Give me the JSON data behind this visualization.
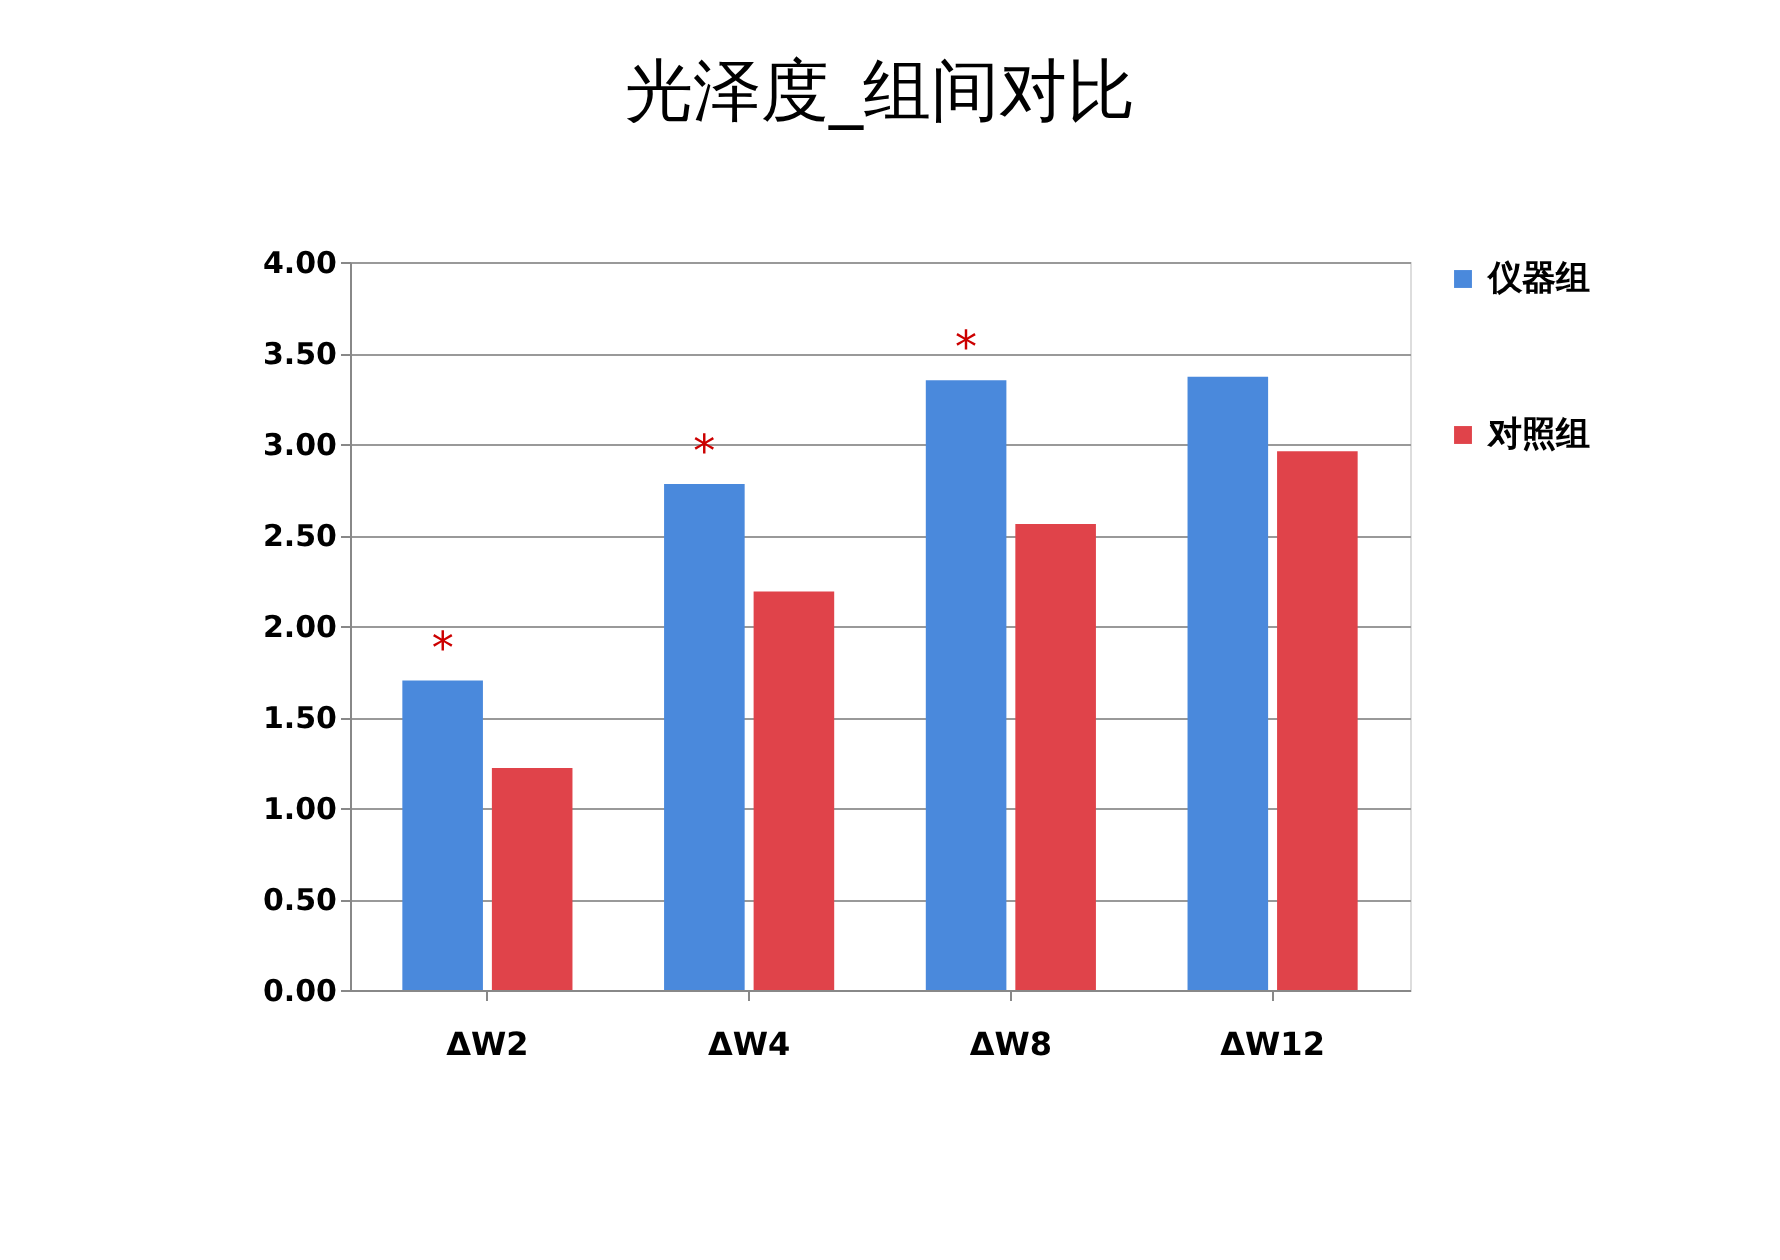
{
  "chart_data": {
    "type": "bar",
    "title": "光泽度_组间对比",
    "categories": [
      "ΔW2",
      "ΔW4",
      "ΔW8",
      "ΔW12"
    ],
    "series": [
      {
        "name": "仪器组",
        "color": "#4a89dc",
        "values": [
          1.7,
          2.78,
          3.35,
          3.37
        ]
      },
      {
        "name": "对照组",
        "color": "#e0434a",
        "values": [
          1.22,
          2.19,
          2.56,
          2.96
        ]
      }
    ],
    "ylim": [
      0,
      4
    ],
    "yticks": [
      {
        "value": 0,
        "label": "0.00"
      },
      {
        "value": 0.5,
        "label": "0.50"
      },
      {
        "value": 1,
        "label": "1.00"
      },
      {
        "value": 1.5,
        "label": "1.50"
      },
      {
        "value": 2,
        "label": "2.00"
      },
      {
        "value": 2.5,
        "label": "2.50"
      },
      {
        "value": 3,
        "label": "3.00"
      },
      {
        "value": 3.5,
        "label": "3.50"
      },
      {
        "value": 4,
        "label": "4.00"
      }
    ],
    "grid": "y",
    "legend": "right",
    "annotations": [
      {
        "text": "*",
        "x": "ΔW2",
        "y": 1.7
      },
      {
        "text": "*",
        "x": "ΔW4",
        "y": 2.78
      },
      {
        "text": "*",
        "x": "ΔW8",
        "y": 3.35
      }
    ]
  }
}
